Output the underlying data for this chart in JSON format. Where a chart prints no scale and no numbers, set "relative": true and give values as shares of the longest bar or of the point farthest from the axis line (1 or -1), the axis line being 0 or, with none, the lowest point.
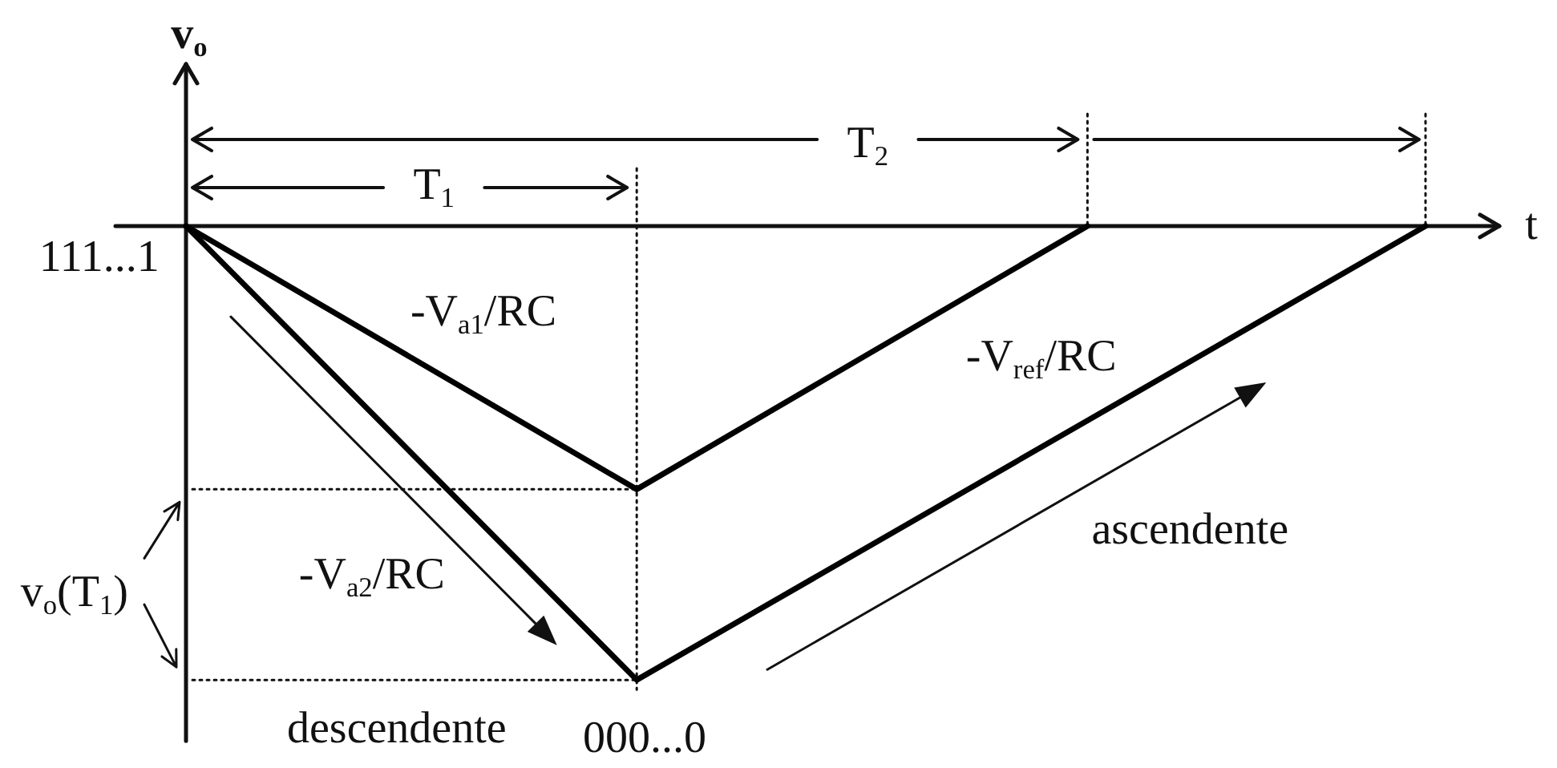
{
  "chart_data": {
    "type": "line",
    "relative": true,
    "xlabel": "t",
    "ylabel": "v$_{o}$",
    "tick_labels": false,
    "marker": "none",
    "categories": [
      null,
      null,
      null,
      null,
      null,
      null,
      null,
      null,
      null,
      null,
      null,
      null
    ],
    "series": [
      {
        "color": "#000000",
        "values": [
          0,
          null,
          null,
          null,
          -0.58,
          null,
          null,
          null,
          0,
          null,
          null,
          null
        ]
      },
      {
        "color": "#000000",
        "values": [
          0,
          null,
          null,
          null,
          -1,
          null,
          null,
          null,
          null,
          null,
          null,
          0
        ]
      }
    ],
    "ref_lines": [
      {
        "axis": "y",
        "value": -0.58,
        "line_style": "dotted"
      },
      {
        "axis": "y",
        "value": -1,
        "line_style": "dotted"
      }
    ],
    "annotations": [
      "111...1",
      "T$_{1}$",
      "T$_{2}$",
      "-V$_{a1}$/RC",
      "-V$_{ref}$/RC",
      "-V$_{a2}$/RC",
      "v$_{o}$(T$_{1}$)",
      "descendente",
      "000...0",
      "ascendente"
    ]
  }
}
